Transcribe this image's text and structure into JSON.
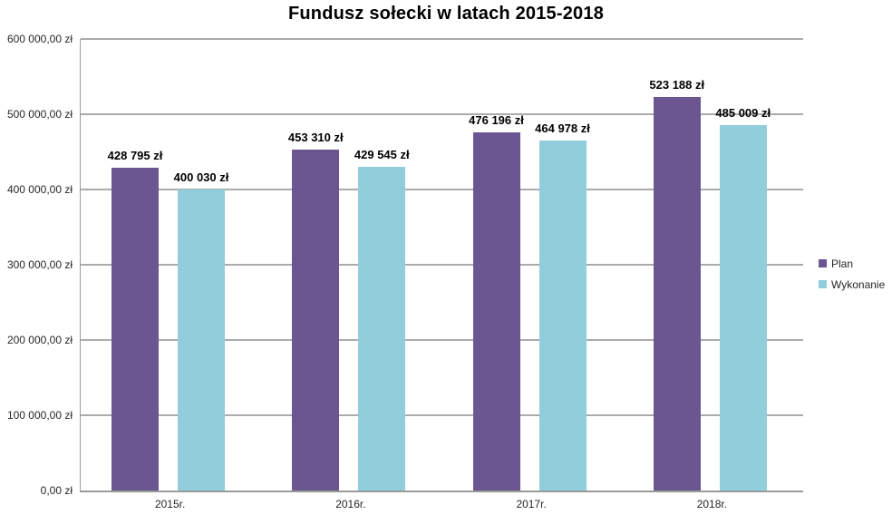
{
  "chart_data": {
    "type": "bar",
    "title": "Fundusz sołecki w latach 2015-2018",
    "categories": [
      "2015r.",
      "2016r.",
      "2017r.",
      "2018r."
    ],
    "series": [
      {
        "name": "Plan",
        "color": "#6B5691",
        "values": [
          428795,
          453310,
          476196,
          523188
        ],
        "labels": [
          "428 795 zł",
          "453 310 zł",
          "476 196 zł",
          "523 188 zł"
        ]
      },
      {
        "name": "Wykonanie",
        "color": "#92CDDC",
        "values": [
          400030,
          429545,
          464978,
          485009
        ],
        "labels": [
          "400 030 zł",
          "429 545 zł",
          "464 978 zł",
          "485 009 zł"
        ]
      }
    ],
    "y_axis": {
      "min": 0,
      "max": 600000,
      "step": 100000,
      "tick_labels": [
        "0,00 zł",
        "100 000,00 zł",
        "200 000,00 zł",
        "300 000,00 zł",
        "400 000,00 zł",
        "500 000,00 zł",
        "600 000,00 zł"
      ]
    },
    "xlabel": "",
    "ylabel": "",
    "grid": true,
    "legend_position": "right",
    "grid_color": "#ABABAB",
    "axis_color": "#9A9A9A"
  }
}
